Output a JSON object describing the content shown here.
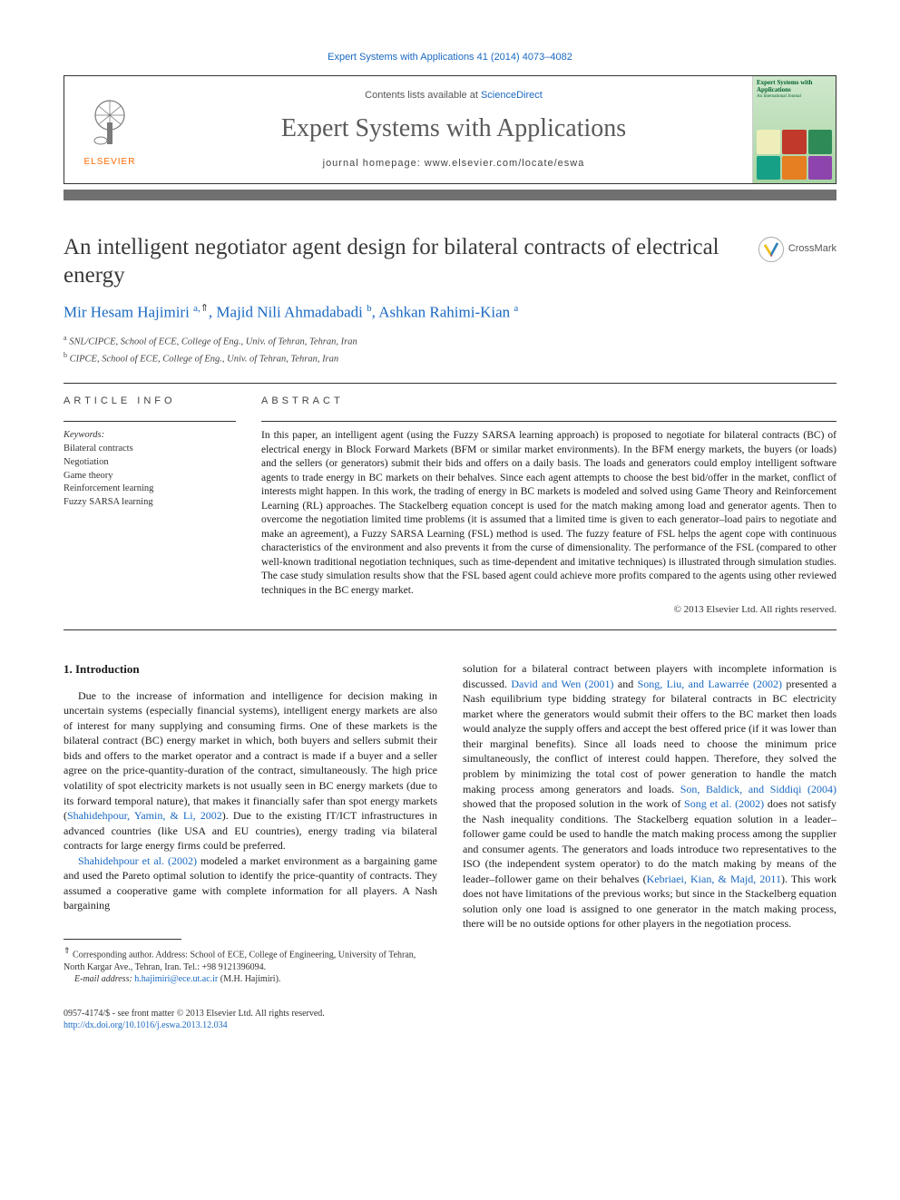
{
  "header": {
    "citation": "Expert Systems with Applications 41 (2014) 4073–4082",
    "contents_prefix": "Contents lists available at ",
    "contents_link": "ScienceDirect",
    "journal_name": "Expert Systems with Applications",
    "homepage_label": "journal homepage: www.elsevier.com/locate/eswa",
    "publisher": "ELSEVIER",
    "cover_title": "Expert Systems with Applications",
    "cover_subtitle": "An International Journal"
  },
  "crossmark": "CrossMark",
  "article": {
    "title": "An intelligent negotiator agent design for bilateral contracts of electrical energy",
    "authors_html": "Mir Hesam Hajimiri <sup>a,</sup><sup class='star'>⇑</sup>, Majid Nili Ahmadabadi <sup>b</sup>, Ashkan Rahimi-Kian <sup>a</sup>",
    "affiliations": [
      {
        "marker": "a",
        "text": "SNL/CIPCE, School of ECE, College of Eng., Univ. of Tehran, Tehran, Iran"
      },
      {
        "marker": "b",
        "text": "CIPCE, School of ECE, College of Eng., Univ. of Tehran, Tehran, Iran"
      }
    ]
  },
  "info": {
    "label": "article info",
    "keywords_label": "Keywords:",
    "keywords": [
      "Bilateral contracts",
      "Negotiation",
      "Game theory",
      "Reinforcement learning",
      "Fuzzy SARSA learning"
    ]
  },
  "abstract": {
    "label": "abstract",
    "text": "In this paper, an intelligent agent (using the Fuzzy SARSA learning approach) is proposed to negotiate for bilateral contracts (BC) of electrical energy in Block Forward Markets (BFM or similar market environments). In the BFM energy markets, the buyers (or loads) and the sellers (or generators) submit their bids and offers on a daily basis. The loads and generators could employ intelligent software agents to trade energy in BC markets on their behalves. Since each agent attempts to choose the best bid/offer in the market, conflict of interests might happen. In this work, the trading of energy in BC markets is modeled and solved using Game Theory and Reinforcement Learning (RL) approaches. The Stackelberg equation concept is used for the match making among load and generator agents. Then to overcome the negotiation limited time problems (it is assumed that a limited time is given to each generator–load pairs to negotiate and make an agreement), a Fuzzy SARSA Learning (FSL) method is used. The fuzzy feature of FSL helps the agent cope with continuous characteristics of the environment and also prevents it from the curse of dimensionality. The performance of the FSL (compared to other well-known traditional negotiation techniques, such as time-dependent and imitative techniques) is illustrated through simulation studies. The case study simulation results show that the FSL based agent could achieve more profits compared to the agents using other reviewed techniques in the BC energy market.",
    "copyright": "© 2013 Elsevier Ltd. All rights reserved."
  },
  "body": {
    "heading": "1. Introduction",
    "left_paras": [
      "Due to the increase of information and intelligence for decision making in uncertain systems (especially financial systems), intelligent energy markets are also of interest for many supplying and consuming firms. One of these markets is the bilateral contract (BC) energy market in which, both buyers and sellers submit their bids and offers to the market operator and a contract is made if a buyer and a seller agree on the price-quantity-duration of the contract, simultaneously. The high price volatility of spot electricity markets is not usually seen in BC energy markets (due to its forward temporal nature), that makes it financially safer than spot energy markets (<span class='link'>Shahidehpour, Yamin, & Li, 2002</span>). Due to the existing IT/ICT infrastructures in advanced countries (like USA and EU countries), energy trading via bilateral contracts for large energy firms could be preferred.",
      "<span class='link'>Shahidehpour et al. (2002)</span> modeled a market environment as a bargaining game and used the Pareto optimal solution to identify the price-quantity of contracts. They assumed a cooperative game with complete information for all players. A Nash bargaining"
    ],
    "right_paras": [
      "solution for a bilateral contract between players with incomplete information is discussed. <span class='link'>David and Wen (2001)</span> and <span class='link'>Song, Liu, and Lawarrée (2002)</span> presented a Nash equilibrium type bidding strategy for bilateral contracts in BC electricity market where the generators would submit their offers to the BC market then loads would analyze the supply offers and accept the best offered price (if it was lower than their marginal benefits). Since all loads need to choose the minimum price simultaneously, the conflict of interest could happen. Therefore, they solved the problem by minimizing the total cost of power generation to handle the match making process among generators and loads. <span class='link'>Son, Baldick, and Siddiqi (2004)</span> showed that the proposed solution in the work of <span class='link'>Song et al. (2002)</span> does not satisfy the Nash inequality conditions. The Stackelberg equation solution in a leader–follower game could be used to handle the match making process among the supplier and consumer agents. The generators and loads introduce two representatives to the ISO (the independent system operator) to do the match making by means of the leader–follower game on their behalves (<span class='link'>Kebriaei, Kian, & Majd, 2011</span>). This work does not have limitations of the previous works; but since in the Stackelberg equation solution only one load is assigned to one generator in the match making process, there will be no outside options for other players in the negotiation process."
    ]
  },
  "footnote": {
    "corresponding": "Corresponding author. Address: School of ECE, College of Engineering, University of Tehran, North Kargar Ave., Tehran, Iran. Tel.: +98 9121396094.",
    "email_label": "E-mail address:",
    "email": "h.hajimiri@ece.ut.ac.ir",
    "email_suffix": "(M.H. Hajimiri)."
  },
  "footer": {
    "line1": "0957-4174/$ - see front matter © 2013 Elsevier Ltd. All rights reserved.",
    "doi": "http://dx.doi.org/10.1016/j.eswa.2013.12.034"
  },
  "colors": {
    "link": "#1a69c1",
    "elsevier_orange": "#ff6a00",
    "gray_bar": "#707070"
  }
}
